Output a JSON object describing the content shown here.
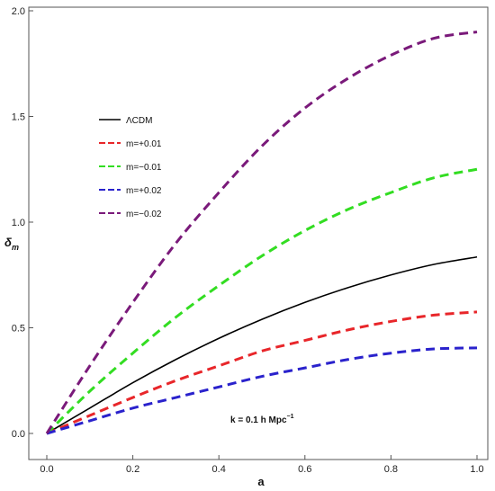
{
  "chart_data": {
    "type": "line",
    "title": "",
    "xlabel": "a",
    "ylabel": "δ",
    "ylabel_sub": "m",
    "xlim": [
      0.0,
      1.0
    ],
    "ylim": [
      0.0,
      2.0
    ],
    "x_ticks": [
      "0.0",
      "0.2",
      "0.4",
      "0.6",
      "0.8",
      "1.0"
    ],
    "y_ticks": [
      "0.0",
      "0.5",
      "1.0",
      "1.5",
      "2.0"
    ],
    "grid": false,
    "legend_position": "upper-left",
    "annotation": {
      "text_main": "k = 0.1 h Mpc",
      "text_sup": "−1"
    },
    "series": [
      {
        "name": "ΛCDM",
        "color": "#000000",
        "dashed": false,
        "x": [
          0.0,
          0.1,
          0.2,
          0.3,
          0.4,
          0.5,
          0.6,
          0.7,
          0.8,
          0.9,
          1.0
        ],
        "y": [
          0.0,
          0.12,
          0.24,
          0.35,
          0.45,
          0.54,
          0.62,
          0.69,
          0.75,
          0.8,
          0.835
        ]
      },
      {
        "name": "m=+0.01",
        "color": "#e8262a",
        "dashed": true,
        "x": [
          0.0,
          0.1,
          0.2,
          0.3,
          0.4,
          0.5,
          0.6,
          0.7,
          0.8,
          0.9,
          1.0
        ],
        "y": [
          0.0,
          0.085,
          0.17,
          0.25,
          0.32,
          0.39,
          0.44,
          0.49,
          0.53,
          0.56,
          0.575
        ]
      },
      {
        "name": "m=−0.01",
        "color": "#33dd22",
        "dashed": true,
        "x": [
          0.0,
          0.1,
          0.2,
          0.3,
          0.4,
          0.5,
          0.6,
          0.7,
          0.8,
          0.9,
          1.0
        ],
        "y": [
          0.0,
          0.2,
          0.38,
          0.55,
          0.7,
          0.84,
          0.96,
          1.06,
          1.14,
          1.21,
          1.25
        ]
      },
      {
        "name": "m=+0.02",
        "color": "#2a22cc",
        "dashed": true,
        "x": [
          0.0,
          0.1,
          0.2,
          0.3,
          0.4,
          0.5,
          0.6,
          0.7,
          0.8,
          0.9,
          1.0
        ],
        "y": [
          0.0,
          0.06,
          0.12,
          0.17,
          0.22,
          0.27,
          0.31,
          0.35,
          0.38,
          0.4,
          0.405
        ]
      },
      {
        "name": "m=−0.02",
        "color": "#7a1a7a",
        "dashed": true,
        "x": [
          0.0,
          0.1,
          0.2,
          0.3,
          0.4,
          0.5,
          0.6,
          0.7,
          0.8,
          0.9,
          1.0
        ],
        "y": [
          0.0,
          0.32,
          0.62,
          0.9,
          1.14,
          1.36,
          1.54,
          1.68,
          1.79,
          1.87,
          1.9
        ]
      }
    ]
  }
}
